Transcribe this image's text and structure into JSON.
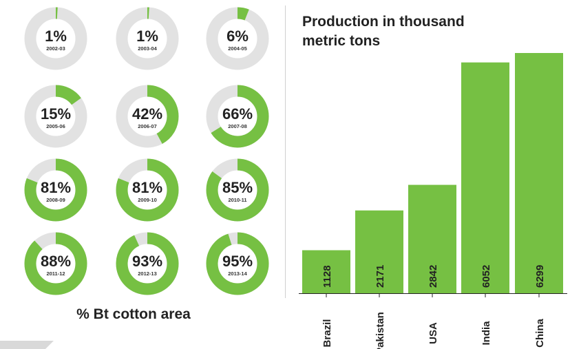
{
  "chart_data": [
    {
      "type": "pie",
      "subtype": "donut-grid",
      "title": "% Bt cotton area",
      "colors": {
        "filled": "#76c043",
        "remaining": "#e2e2e2"
      },
      "items": [
        {
          "label": "2002-03",
          "value": 1
        },
        {
          "label": "2003-04",
          "value": 1
        },
        {
          "label": "2004-05",
          "value": 6
        },
        {
          "label": "2005-06",
          "value": 15
        },
        {
          "label": "2006-07",
          "value": 42
        },
        {
          "label": "2007-08",
          "value": 66
        },
        {
          "label": "2008-09",
          "value": 81
        },
        {
          "label": "2009-10",
          "value": 81
        },
        {
          "label": "2010-11",
          "value": 85
        },
        {
          "label": "2011-12",
          "value": 88
        },
        {
          "label": "2012-13",
          "value": 93
        },
        {
          "label": "2013-14",
          "value": 95
        }
      ]
    },
    {
      "type": "bar",
      "title": "Production in thousand metric tons",
      "categories": [
        "Brazil",
        "Pakistan",
        "USA",
        "India",
        "China"
      ],
      "values": [
        1128,
        2171,
        2842,
        6052,
        6299
      ],
      "ylim": [
        0,
        6299
      ],
      "bar_color": "#76c043",
      "grid": false
    }
  ]
}
